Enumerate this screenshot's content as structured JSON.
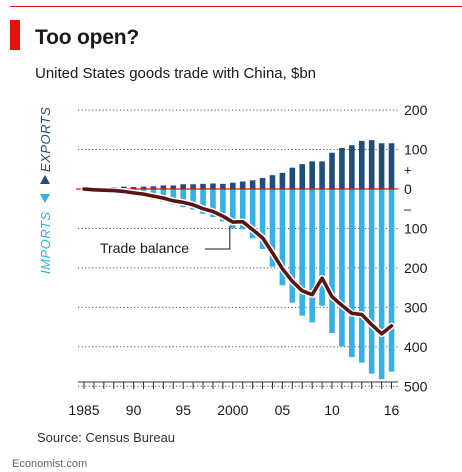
{
  "header": {
    "title": "Too open?",
    "subtitle": "United States goods trade with China, $bn"
  },
  "labels": {
    "exports": "EXPORTS",
    "imports": "IMPORTS",
    "trade_balance": "Trade balance",
    "plus": "+",
    "minus": "–"
  },
  "footer": {
    "source": "Source: Census Bureau",
    "brand": "Economist.com"
  },
  "colors": {
    "exports": "#1f4e79",
    "imports": "#35b1e6",
    "balance": "#5a1414",
    "zero_line": "#e3120b",
    "accent": "#e3120b"
  },
  "chart_data": {
    "type": "bar",
    "title": "Too open?",
    "subtitle": "United States goods trade with China, $bn",
    "x": [
      1985,
      1986,
      1987,
      1988,
      1989,
      1990,
      1991,
      1992,
      1993,
      1994,
      1995,
      1996,
      1997,
      1998,
      1999,
      2000,
      2001,
      2002,
      2003,
      2004,
      2005,
      2006,
      2007,
      2008,
      2009,
      2010,
      2011,
      2012,
      2013,
      2014,
      2015,
      2016
    ],
    "x_tick_labels": [
      {
        "x": 1985,
        "label": "1985"
      },
      {
        "x": 1990,
        "label": "90"
      },
      {
        "x": 1995,
        "label": "95"
      },
      {
        "x": 2000,
        "label": "2000"
      },
      {
        "x": 2005,
        "label": "05"
      },
      {
        "x": 2010,
        "label": "10"
      },
      {
        "x": 2016,
        "label": "16"
      }
    ],
    "y_tick_labels": [
      {
        "y": 200,
        "label": "200"
      },
      {
        "y": 100,
        "label": "100"
      },
      {
        "y": 0,
        "label": "0"
      },
      {
        "y": -100,
        "label": "100"
      },
      {
        "y": -200,
        "label": "200"
      },
      {
        "y": -300,
        "label": "300"
      },
      {
        "y": -400,
        "label": "400"
      },
      {
        "y": -500,
        "label": "500"
      }
    ],
    "ylim": [
      -500,
      200
    ],
    "grid": "dotted horizontal",
    "series": [
      {
        "name": "EXPORTS",
        "type": "bar",
        "values": [
          4,
          3,
          4,
          5,
          6,
          5,
          6,
          7,
          9,
          9,
          12,
          12,
          13,
          14,
          13,
          16,
          19,
          22,
          28,
          35,
          41,
          54,
          63,
          70,
          70,
          92,
          104,
          111,
          122,
          124,
          116,
          116
        ]
      },
      {
        "name": "IMPORTS",
        "type": "bar",
        "values": [
          -4,
          -5,
          -6,
          -9,
          -12,
          -15,
          -19,
          -26,
          -32,
          -39,
          -46,
          -52,
          -63,
          -71,
          -82,
          -100,
          -102,
          -125,
          -152,
          -197,
          -244,
          -288,
          -321,
          -338,
          -296,
          -365,
          -399,
          -426,
          -440,
          -468,
          -482,
          -463
        ]
      },
      {
        "name": "Trade balance",
        "type": "line",
        "values": [
          0,
          -2,
          -3,
          -4,
          -6,
          -10,
          -13,
          -18,
          -23,
          -30,
          -34,
          -40,
          -50,
          -57,
          -69,
          -84,
          -83,
          -103,
          -124,
          -162,
          -202,
          -234,
          -258,
          -268,
          -226,
          -273,
          -295,
          -315,
          -318,
          -344,
          -367,
          -347
        ]
      }
    ]
  }
}
